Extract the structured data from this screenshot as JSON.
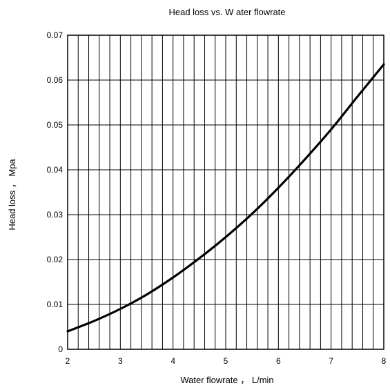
{
  "chart_data": {
    "type": "line",
    "title": "Head  loss vs. W ater flowrate",
    "xlabel": "Water flowrate ， L/min",
    "ylabel": "Head loss ， Mpa",
    "xlim": [
      2,
      8
    ],
    "ylim": [
      0,
      0.07
    ],
    "x_ticks": [
      2,
      3,
      4,
      5,
      6,
      7,
      8
    ],
    "y_ticks": [
      0,
      0.01,
      0.02,
      0.03,
      0.04,
      0.05,
      0.06,
      0.07
    ],
    "x_tick_labels": [
      "2",
      "3",
      "4",
      "5",
      "6",
      "7",
      "8"
    ],
    "y_tick_labels": [
      "0",
      "0.01",
      "0.02",
      "0.03",
      "0.04",
      "0.05",
      "0.06",
      "0.07"
    ],
    "x_minor_step": 0.2,
    "grid": true,
    "series": [
      {
        "color": "#000000",
        "x": [
          2.0,
          2.5,
          3.0,
          3.5,
          4.0,
          4.5,
          5.0,
          5.5,
          6.0,
          6.5,
          7.0,
          7.5,
          8.0
        ],
        "values": [
          0.004,
          0.0063,
          0.009,
          0.0122,
          0.016,
          0.0203,
          0.025,
          0.0302,
          0.036,
          0.0423,
          0.049,
          0.0563,
          0.0635
        ]
      }
    ]
  }
}
